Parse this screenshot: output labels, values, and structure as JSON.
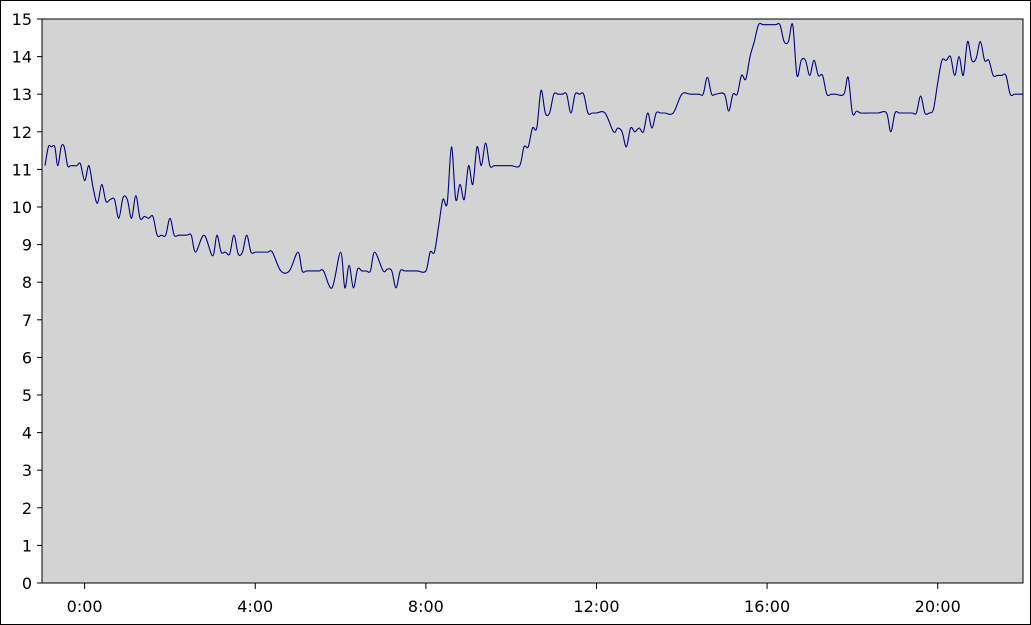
{
  "chart_data": {
    "type": "line",
    "title": "",
    "xlabel": "",
    "ylabel": "",
    "xlim_hours": [
      -1.0,
      22.0
    ],
    "ylim": [
      0,
      15
    ],
    "grid": false,
    "legend": "none",
    "x_ticks": [
      {
        "hour": 0,
        "label": "0:00"
      },
      {
        "hour": 4,
        "label": "4:00"
      },
      {
        "hour": 8,
        "label": "8:00"
      },
      {
        "hour": 12,
        "label": "12:00"
      },
      {
        "hour": 16,
        "label": "16:00"
      },
      {
        "hour": 20,
        "label": "20:00"
      }
    ],
    "y_ticks": [
      "0",
      "1",
      "2",
      "3",
      "4",
      "5",
      "6",
      "7",
      "8",
      "9",
      "10",
      "11",
      "12",
      "13",
      "14",
      "15"
    ],
    "colors": {
      "plot_background": "#d3d3d3",
      "line": "#000080",
      "axis": "#000000"
    },
    "series": [
      {
        "x_hours": [
          -0.93,
          -0.85,
          -0.78,
          -0.7,
          -0.63,
          -0.55,
          -0.48,
          -0.4,
          -0.33,
          -0.25,
          -0.18,
          -0.1,
          0.0,
          0.1,
          0.2,
          0.3,
          0.4,
          0.5,
          0.6,
          0.7,
          0.8,
          0.9,
          1.0,
          1.1,
          1.2,
          1.3,
          1.4,
          1.5,
          1.6,
          1.7,
          1.8,
          1.9,
          2.0,
          2.1,
          2.2,
          2.3,
          2.4,
          2.5,
          2.6,
          2.8,
          3.0,
          3.1,
          3.2,
          3.3,
          3.4,
          3.5,
          3.6,
          3.7,
          3.8,
          3.9,
          4.0,
          4.1,
          4.2,
          4.3,
          4.4,
          4.6,
          4.8,
          5.0,
          5.1,
          5.2,
          5.3,
          5.4,
          5.5,
          5.6,
          5.8,
          6.0,
          6.1,
          6.2,
          6.3,
          6.4,
          6.5,
          6.6,
          6.7,
          6.8,
          7.0,
          7.1,
          7.2,
          7.3,
          7.4,
          7.5,
          7.6,
          7.7,
          7.8,
          8.0,
          8.1,
          8.2,
          8.3,
          8.4,
          8.5,
          8.6,
          8.7,
          8.8,
          8.9,
          9.0,
          9.1,
          9.2,
          9.3,
          9.4,
          9.5,
          9.6,
          9.7,
          9.8,
          10.0,
          10.2,
          10.3,
          10.4,
          10.5,
          10.6,
          10.7,
          10.8,
          10.9,
          11.0,
          11.1,
          11.2,
          11.3,
          11.4,
          11.5,
          11.6,
          11.7,
          11.8,
          11.9,
          12.0,
          12.2,
          12.4,
          12.5,
          12.6,
          12.7,
          12.8,
          12.9,
          13.0,
          13.1,
          13.2,
          13.3,
          13.4,
          13.5,
          13.6,
          13.8,
          14.0,
          14.2,
          14.4,
          14.5,
          14.6,
          14.7,
          14.8,
          15.0,
          15.1,
          15.2,
          15.3,
          15.4,
          15.5,
          15.6,
          15.7,
          15.8,
          15.9,
          16.0,
          16.2,
          16.3,
          16.4,
          16.5,
          16.6,
          16.7,
          16.8,
          16.9,
          17.0,
          17.1,
          17.2,
          17.3,
          17.4,
          17.5,
          17.6,
          17.8,
          17.9,
          18.0,
          18.1,
          18.2,
          18.4,
          18.6,
          18.8,
          18.9,
          19.0,
          19.1,
          19.2,
          19.4,
          19.5,
          19.6,
          19.7,
          19.8,
          19.9,
          20.0,
          20.1,
          20.2,
          20.3,
          20.4,
          20.5,
          20.6,
          20.7,
          20.8,
          20.9,
          21.0,
          21.1,
          21.2,
          21.3,
          21.4,
          21.5,
          21.6,
          21.7,
          21.8,
          21.9,
          22.0
        ],
        "values": [
          11.1,
          11.6,
          11.6,
          11.6,
          11.1,
          11.6,
          11.6,
          11.1,
          11.1,
          11.1,
          11.1,
          11.15,
          10.7,
          11.1,
          10.5,
          10.1,
          10.6,
          10.15,
          10.2,
          10.2,
          9.7,
          10.25,
          10.2,
          9.7,
          10.3,
          9.7,
          9.75,
          9.7,
          9.75,
          9.25,
          9.25,
          9.25,
          9.7,
          9.25,
          9.25,
          9.25,
          9.25,
          9.25,
          8.8,
          9.25,
          8.7,
          9.25,
          8.8,
          8.8,
          8.75,
          9.25,
          8.75,
          8.8,
          9.25,
          8.8,
          8.8,
          8.8,
          8.8,
          8.8,
          8.8,
          8.3,
          8.3,
          8.8,
          8.3,
          8.3,
          8.3,
          8.3,
          8.3,
          8.3,
          7.85,
          8.8,
          7.85,
          8.45,
          7.85,
          8.35,
          8.3,
          8.3,
          8.3,
          8.8,
          8.3,
          8.35,
          8.3,
          7.85,
          8.3,
          8.3,
          8.3,
          8.3,
          8.3,
          8.3,
          8.8,
          8.8,
          9.5,
          10.2,
          10.1,
          11.6,
          10.2,
          10.6,
          10.2,
          11.1,
          10.6,
          11.6,
          11.1,
          11.7,
          11.1,
          11.1,
          11.1,
          11.1,
          11.1,
          11.1,
          11.6,
          11.6,
          12.1,
          12.1,
          13.1,
          12.5,
          12.5,
          13.0,
          13.0,
          13.0,
          13.0,
          12.5,
          13.0,
          13.0,
          13.0,
          12.5,
          12.5,
          12.5,
          12.5,
          12.0,
          12.1,
          12.0,
          11.6,
          12.1,
          12.0,
          12.1,
          12.0,
          12.5,
          12.1,
          12.5,
          12.5,
          12.5,
          12.5,
          13.0,
          13.0,
          13.0,
          13.0,
          13.45,
          13.0,
          13.0,
          13.0,
          12.55,
          13.0,
          13.0,
          13.5,
          13.4,
          14.0,
          14.4,
          14.85,
          14.85,
          14.85,
          14.85,
          14.85,
          14.4,
          14.4,
          14.85,
          13.5,
          13.9,
          13.9,
          13.5,
          13.9,
          13.5,
          13.5,
          13.0,
          13.0,
          13.0,
          13.0,
          13.45,
          12.5,
          12.55,
          12.5,
          12.5,
          12.5,
          12.5,
          12.0,
          12.5,
          12.5,
          12.5,
          12.5,
          12.5,
          12.95,
          12.5,
          12.5,
          12.6,
          13.3,
          13.9,
          13.9,
          14.0,
          13.5,
          14.0,
          13.5,
          14.4,
          13.9,
          13.95,
          14.4,
          13.9,
          13.9,
          13.5,
          13.5,
          13.5,
          13.5,
          13.0,
          13.0,
          13.0,
          13.0
        ]
      }
    ]
  }
}
